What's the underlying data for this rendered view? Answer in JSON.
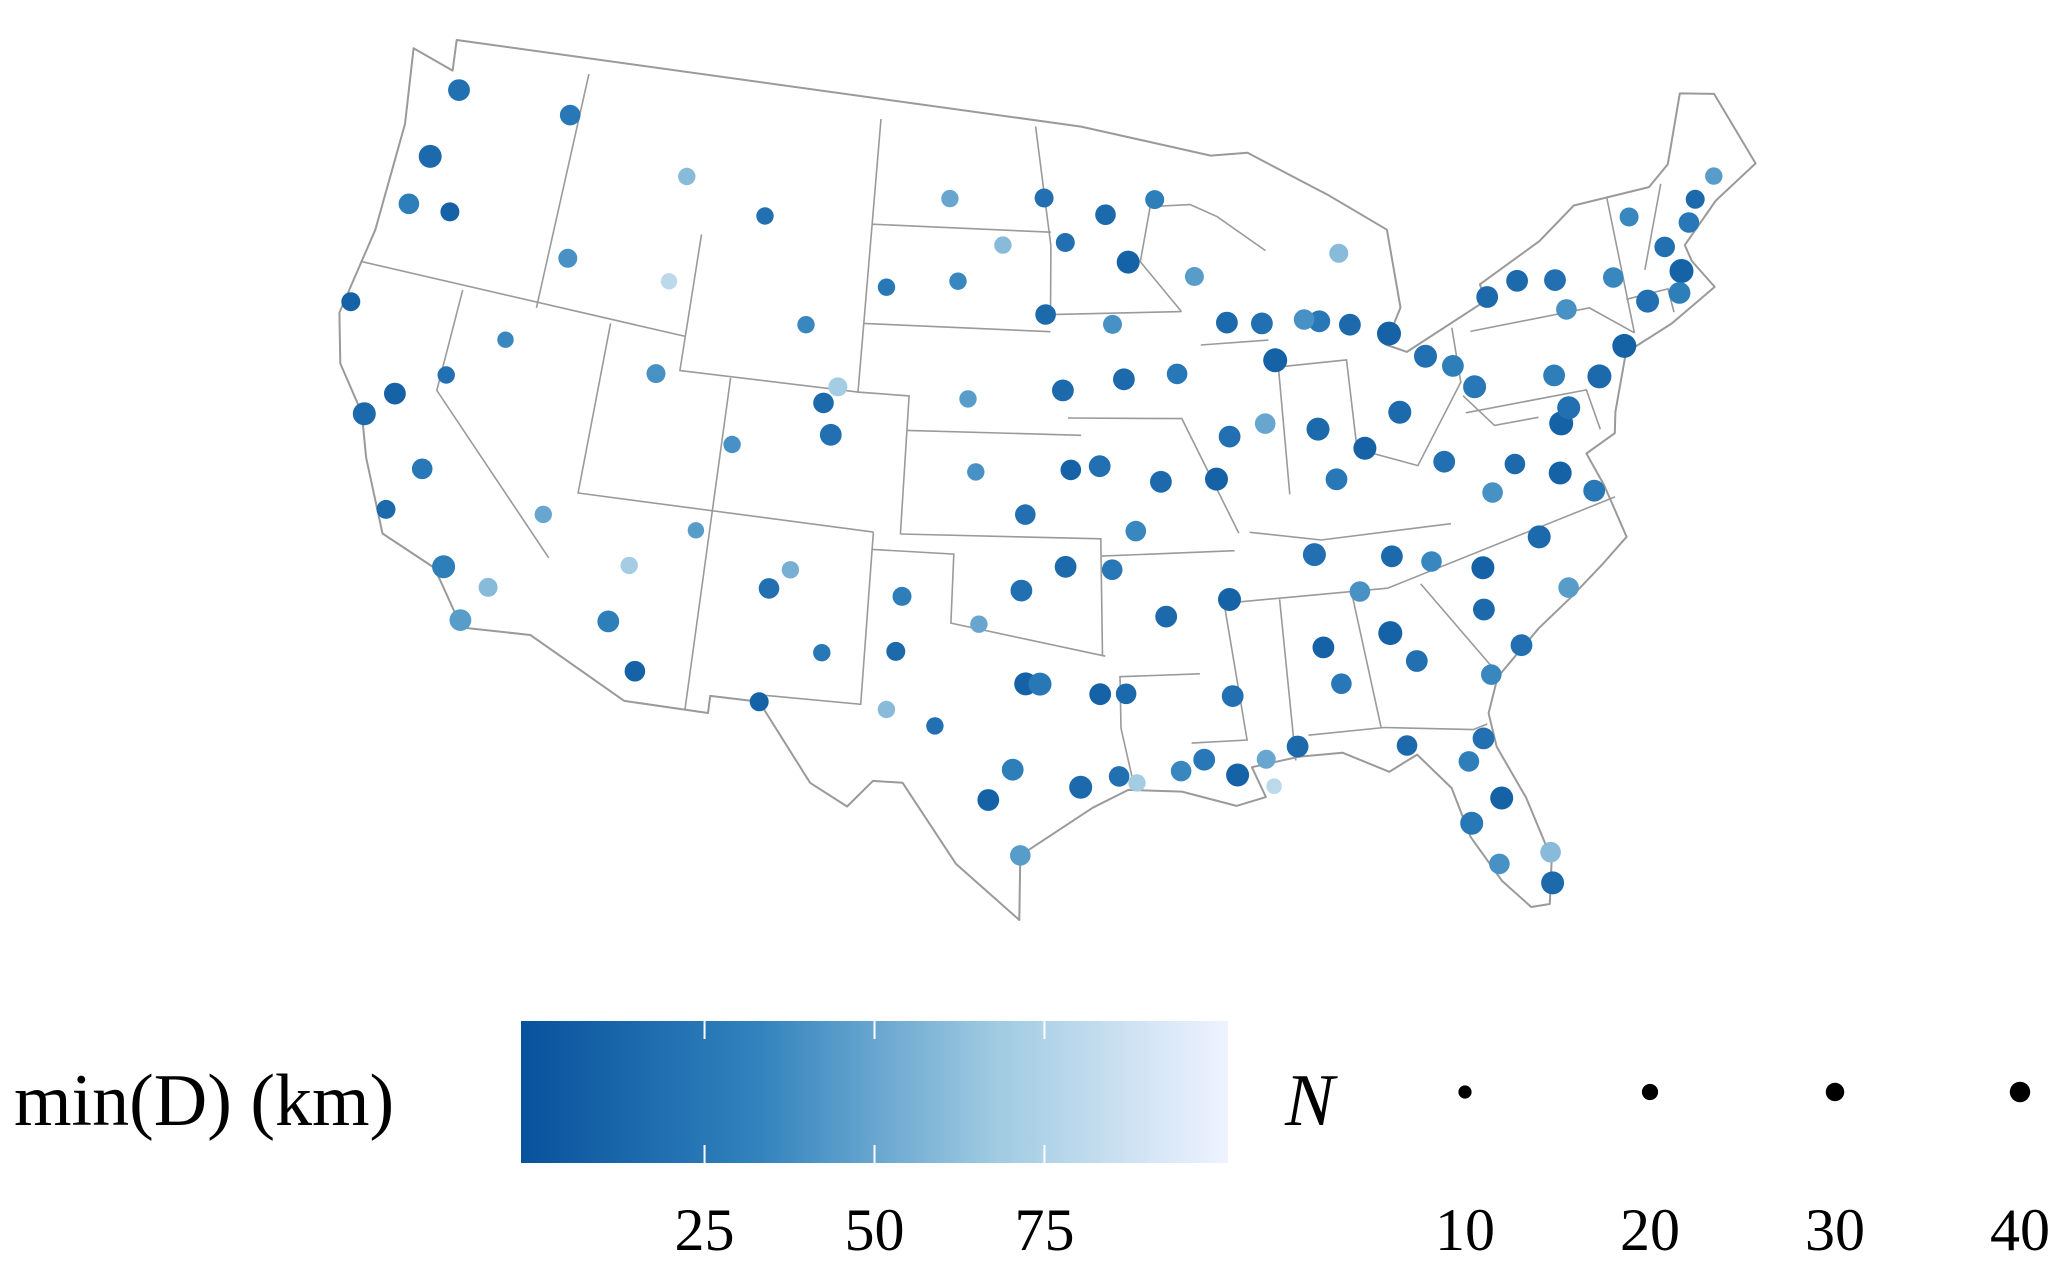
{
  "chart_data": {
    "type": "bubble-map",
    "colorbar_title": "min(D) (km)",
    "size_title": "N",
    "clim": [
      -2,
      102
    ],
    "colorbar_ticks": [
      25,
      50,
      75
    ],
    "colormap": [
      "#08519c",
      "#3182bd",
      "#9ecae1",
      "#eff3ff"
    ],
    "size_ticks": [
      10,
      20,
      30,
      40
    ],
    "points": [
      [
        -122.3,
        47.6,
        20,
        30
      ],
      [
        -122.7,
        45.5,
        15,
        35
      ],
      [
        -123.0,
        44.0,
        30,
        25
      ],
      [
        -121.3,
        44.1,
        10,
        20
      ],
      [
        -117.4,
        47.7,
        25,
        25
      ],
      [
        -116.2,
        43.6,
        40,
        20
      ],
      [
        -112.0,
        46.6,
        60,
        15
      ],
      [
        -108.5,
        45.8,
        20,
        15
      ],
      [
        -106.3,
        42.8,
        35,
        15
      ],
      [
        -104.8,
        41.1,
        70,
        20
      ],
      [
        -111.9,
        40.8,
        40,
        20
      ],
      [
        -112.0,
        43.5,
        80,
        12
      ],
      [
        -115.1,
        36.2,
        50,
        15
      ],
      [
        -119.8,
        39.5,
        20,
        15
      ],
      [
        -117.9,
        40.9,
        35,
        12
      ],
      [
        -122.4,
        37.8,
        15,
        35
      ],
      [
        -121.5,
        38.6,
        10,
        30
      ],
      [
        -119.8,
        36.7,
        25,
        25
      ],
      [
        -118.2,
        34.1,
        30,
        35
      ],
      [
        -117.2,
        32.7,
        45,
        30
      ],
      [
        -116.5,
        33.8,
        60,
        20
      ],
      [
        -120.7,
        35.3,
        15,
        20
      ],
      [
        -124.1,
        40.8,
        10,
        20
      ],
      [
        -112.1,
        33.5,
        30,
        30
      ],
      [
        -110.9,
        32.2,
        10,
        25
      ],
      [
        -111.7,
        35.2,
        70,
        15
      ],
      [
        -109.5,
        36.5,
        45,
        12
      ],
      [
        -106.6,
        35.1,
        20,
        25
      ],
      [
        -105.9,
        35.7,
        55,
        15
      ],
      [
        -104.5,
        33.4,
        25,
        15
      ],
      [
        -106.5,
        31.8,
        10,
        20
      ],
      [
        -104.9,
        39.7,
        20,
        30
      ],
      [
        -108.6,
        39.1,
        40,
        15
      ],
      [
        -105.3,
        40.6,
        15,
        25
      ],
      [
        -103.2,
        44.1,
        25,
        15
      ],
      [
        -100.8,
        46.8,
        50,
        15
      ],
      [
        -96.8,
        46.9,
        20,
        20
      ],
      [
        -98.5,
        45.5,
        60,
        15
      ],
      [
        -100.3,
        44.4,
        35,
        15
      ],
      [
        -96.7,
        43.5,
        15,
        25
      ],
      [
        -99.7,
        41.0,
        45,
        15
      ],
      [
        -96.0,
        41.3,
        15,
        30
      ],
      [
        -97.4,
        37.7,
        20,
        25
      ],
      [
        -99.3,
        38.9,
        40,
        15
      ],
      [
        -95.7,
        39.0,
        10,
        25
      ],
      [
        -97.5,
        35.5,
        20,
        30
      ],
      [
        -95.9,
        36.2,
        15,
        30
      ],
      [
        -99.0,
        34.5,
        50,
        15
      ],
      [
        -101.8,
        35.2,
        30,
        20
      ],
      [
        -101.9,
        33.6,
        15,
        20
      ],
      [
        -97.3,
        32.8,
        10,
        35
      ],
      [
        -96.8,
        32.8,
        25,
        35
      ],
      [
        -95.4,
        29.8,
        15,
        35
      ],
      [
        -97.7,
        30.3,
        30,
        30
      ],
      [
        -98.5,
        29.4,
        10,
        30
      ],
      [
        -97.4,
        27.8,
        45,
        25
      ],
      [
        -94.1,
        30.1,
        20,
        25
      ],
      [
        -102.1,
        31.9,
        60,
        15
      ],
      [
        -100.4,
        31.5,
        20,
        15
      ],
      [
        -94.7,
        32.5,
        10,
        30
      ],
      [
        -93.3,
        45.0,
        10,
        35
      ],
      [
        -94.2,
        46.4,
        15,
        25
      ],
      [
        -92.1,
        46.8,
        30,
        20
      ],
      [
        -95.9,
        45.6,
        20,
        20
      ],
      [
        -93.6,
        41.6,
        15,
        30
      ],
      [
        -91.5,
        41.7,
        25,
        25
      ],
      [
        -94.0,
        43.2,
        40,
        20
      ],
      [
        -90.2,
        38.6,
        10,
        35
      ],
      [
        -94.6,
        39.1,
        20,
        30
      ],
      [
        -92.3,
        38.6,
        15,
        30
      ],
      [
        -93.3,
        37.2,
        35,
        25
      ],
      [
        -89.4,
        43.1,
        15,
        30
      ],
      [
        -88.0,
        43.0,
        20,
        30
      ],
      [
        -90.6,
        44.5,
        45,
        20
      ],
      [
        -87.6,
        41.9,
        10,
        40
      ],
      [
        -89.6,
        39.8,
        20,
        30
      ],
      [
        -88.2,
        40.1,
        50,
        25
      ],
      [
        -86.2,
        39.8,
        15,
        35
      ],
      [
        -85.7,
        38.3,
        25,
        30
      ],
      [
        -84.5,
        39.1,
        10,
        35
      ],
      [
        -83.0,
        40.0,
        15,
        35
      ],
      [
        -81.7,
        41.5,
        20,
        35
      ],
      [
        -83.0,
        42.3,
        10,
        40
      ],
      [
        -85.7,
        42.9,
        25,
        30
      ],
      [
        -84.6,
        44.8,
        60,
        20
      ],
      [
        -86.3,
        43.0,
        40,
        25
      ],
      [
        -84.5,
        42.7,
        15,
        30
      ],
      [
        -92.3,
        34.7,
        15,
        30
      ],
      [
        -94.2,
        36.1,
        25,
        25
      ],
      [
        -90.0,
        35.1,
        10,
        35
      ],
      [
        -86.8,
        36.2,
        20,
        35
      ],
      [
        -84.0,
        35.9,
        15,
        30
      ],
      [
        -85.3,
        35.0,
        40,
        25
      ],
      [
        -86.8,
        33.5,
        10,
        30
      ],
      [
        -86.3,
        32.4,
        25,
        25
      ],
      [
        -88.0,
        30.7,
        15,
        30
      ],
      [
        -90.1,
        32.3,
        20,
        30
      ],
      [
        -89.1,
        30.4,
        50,
        20
      ],
      [
        -90.1,
        30.0,
        10,
        35
      ],
      [
        -91.2,
        30.5,
        25,
        30
      ],
      [
        -92.0,
        30.2,
        35,
        25
      ],
      [
        -93.8,
        32.5,
        15,
        25
      ],
      [
        -84.4,
        33.7,
        10,
        40
      ],
      [
        -83.6,
        32.8,
        20,
        30
      ],
      [
        -81.1,
        32.1,
        35,
        25
      ],
      [
        -84.3,
        30.4,
        15,
        25
      ],
      [
        -81.7,
        30.3,
        20,
        30
      ],
      [
        -81.4,
        28.5,
        10,
        35
      ],
      [
        -82.5,
        27.9,
        25,
        35
      ],
      [
        -80.2,
        25.8,
        15,
        35
      ],
      [
        -81.8,
        26.6,
        40,
        25
      ],
      [
        -80.1,
        26.7,
        60,
        25
      ],
      [
        -82.3,
        29.7,
        30,
        25
      ],
      [
        -80.8,
        35.2,
        10,
        35
      ],
      [
        -78.6,
        35.8,
        15,
        35
      ],
      [
        -77.9,
        34.2,
        45,
        25
      ],
      [
        -79.9,
        32.8,
        20,
        30
      ],
      [
        -81.0,
        34.0,
        15,
        30
      ],
      [
        -82.6,
        35.6,
        35,
        25
      ],
      [
        -77.4,
        37.5,
        10,
        35
      ],
      [
        -76.3,
        36.8,
        25,
        30
      ],
      [
        -80.0,
        37.3,
        40,
        25
      ],
      [
        -79.0,
        38.0,
        15,
        25
      ],
      [
        -77.0,
        38.9,
        10,
        40
      ],
      [
        -76.6,
        39.3,
        20,
        35
      ],
      [
        -75.2,
        40.0,
        15,
        40
      ],
      [
        -74.0,
        40.7,
        10,
        40
      ],
      [
        -80.0,
        40.4,
        25,
        35
      ],
      [
        -76.9,
        40.3,
        30,
        30
      ],
      [
        -78.9,
        42.9,
        15,
        30
      ],
      [
        -76.1,
        43.0,
        20,
        30
      ],
      [
        -73.8,
        42.7,
        35,
        25
      ],
      [
        -71.1,
        42.4,
        10,
        40
      ],
      [
        -71.4,
        41.8,
        30,
        30
      ],
      [
        -72.7,
        41.8,
        20,
        35
      ],
      [
        -70.3,
        43.7,
        25,
        25
      ],
      [
        -69.8,
        44.3,
        15,
        20
      ],
      [
        -68.8,
        44.8,
        45,
        15
      ],
      [
        -72.6,
        44.3,
        35,
        20
      ],
      [
        -71.5,
        43.2,
        20,
        25
      ],
      [
        -77.6,
        43.2,
        15,
        30
      ],
      [
        -75.9,
        42.1,
        40,
        25
      ],
      [
        -81.6,
        38.4,
        20,
        30
      ],
      [
        -80.7,
        41.1,
        30,
        30
      ],
      [
        -93.5,
        29.9,
        70,
        15
      ],
      [
        -88.9,
        29.6,
        80,
        10
      ]
    ]
  }
}
